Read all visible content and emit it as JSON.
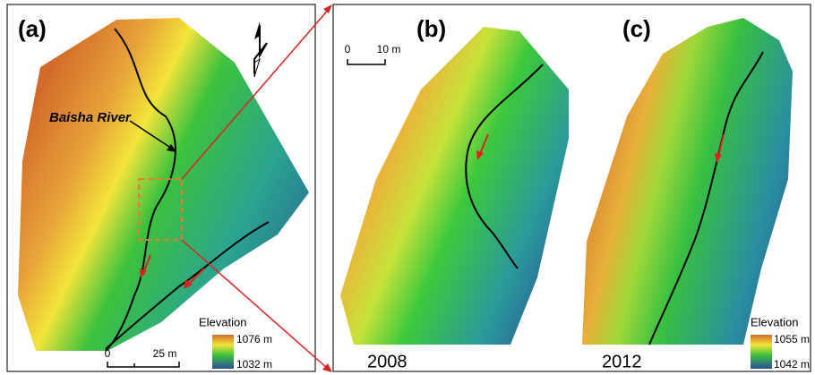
{
  "panels": [
    {
      "label": "(a)",
      "river_label": "Baisha River",
      "legend": {
        "title": "Elevation",
        "max": "1076 m",
        "min": "1032 m"
      },
      "scale_bar": {
        "start": "0",
        "end": "25 m"
      }
    },
    {
      "label": "(b)",
      "scale_bar": {
        "start": "0",
        "end": "10 m"
      },
      "year": "2008"
    },
    {
      "label": "(c)",
      "year": "2012",
      "legend": {
        "title": "Elevation",
        "max": "1055 m",
        "min": "1042 m"
      }
    }
  ]
}
